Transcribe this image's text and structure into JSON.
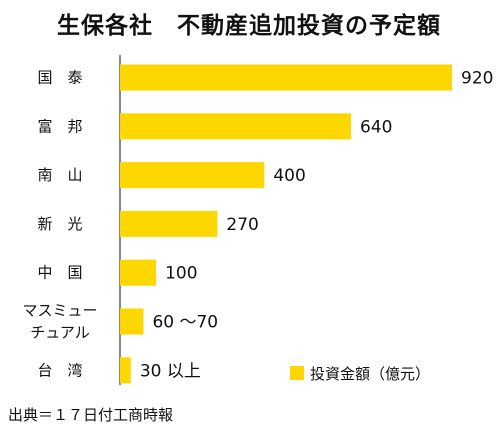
{
  "chart_data": {
    "type": "bar",
    "orientation": "horizontal",
    "title": "生保各社　不動産追加投資の予定額",
    "categories": [
      "国　泰",
      "富　邦",
      "南　山",
      "新　光",
      "中　国",
      "マスミュー\nチュアル",
      "台　湾"
    ],
    "values": [
      920,
      640,
      400,
      270,
      100,
      65,
      30
    ],
    "value_labels": [
      "920",
      "640",
      "400",
      "270",
      "100",
      "60 ～70",
      "30 以上"
    ],
    "series": [
      {
        "name": "投資金額（億元）",
        "values": [
          920,
          640,
          400,
          270,
          100,
          65,
          30
        ]
      }
    ],
    "bar_color": "#FFD700",
    "xlim": [
      0,
      1000
    ],
    "grid": false,
    "legend_position": "bottom-right"
  },
  "source": "出典＝１７日付工商時報"
}
